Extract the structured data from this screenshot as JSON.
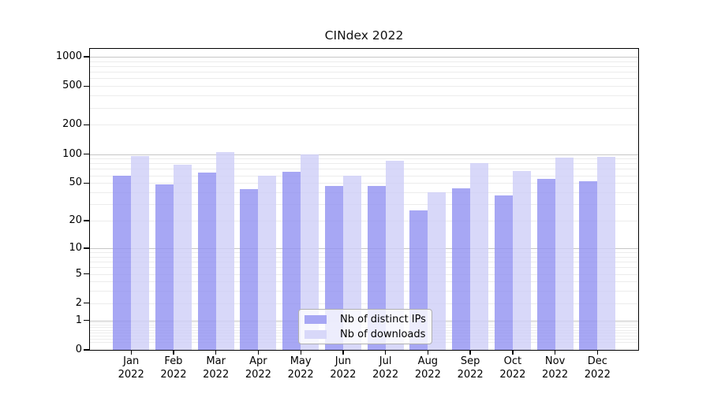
{
  "chart_data": {
    "type": "bar",
    "title": "CINdex 2022",
    "categories": [
      "Jan 2022",
      "Feb 2022",
      "Mar 2022",
      "Apr 2022",
      "May 2022",
      "Jun 2022",
      "Jul 2022",
      "Aug 2022",
      "Sep 2022",
      "Oct 2022",
      "Nov 2022",
      "Dec 2022"
    ],
    "series": [
      {
        "name": "Nb of distinct IPs",
        "color": "#a7a7f4",
        "values": [
          60,
          48,
          64,
          43,
          66,
          47,
          47,
          26,
          44,
          37,
          55,
          52
        ]
      },
      {
        "name": "Nb of downloads",
        "color": "#d8d8f9",
        "values": [
          95,
          77,
          105,
          60,
          99,
          60,
          86,
          40,
          80,
          67,
          92,
          94
        ]
      }
    ],
    "xlabel": "",
    "ylabel": "",
    "yscale": "symlog (y proportional to ln(1+v))",
    "y_tick_labels": [
      "0",
      "1",
      "2",
      "5",
      "10",
      "20",
      "50",
      "100",
      "200",
      "500",
      "1000"
    ],
    "y_tick_values": [
      0,
      1,
      2,
      5,
      10,
      20,
      50,
      100,
      200,
      500,
      1000
    ],
    "ylim": [
      0,
      1210
    ],
    "grid": true,
    "grid_major_color": "#c6c6c6",
    "grid_minor_color": "#ececec",
    "legend_position": "lower center"
  }
}
